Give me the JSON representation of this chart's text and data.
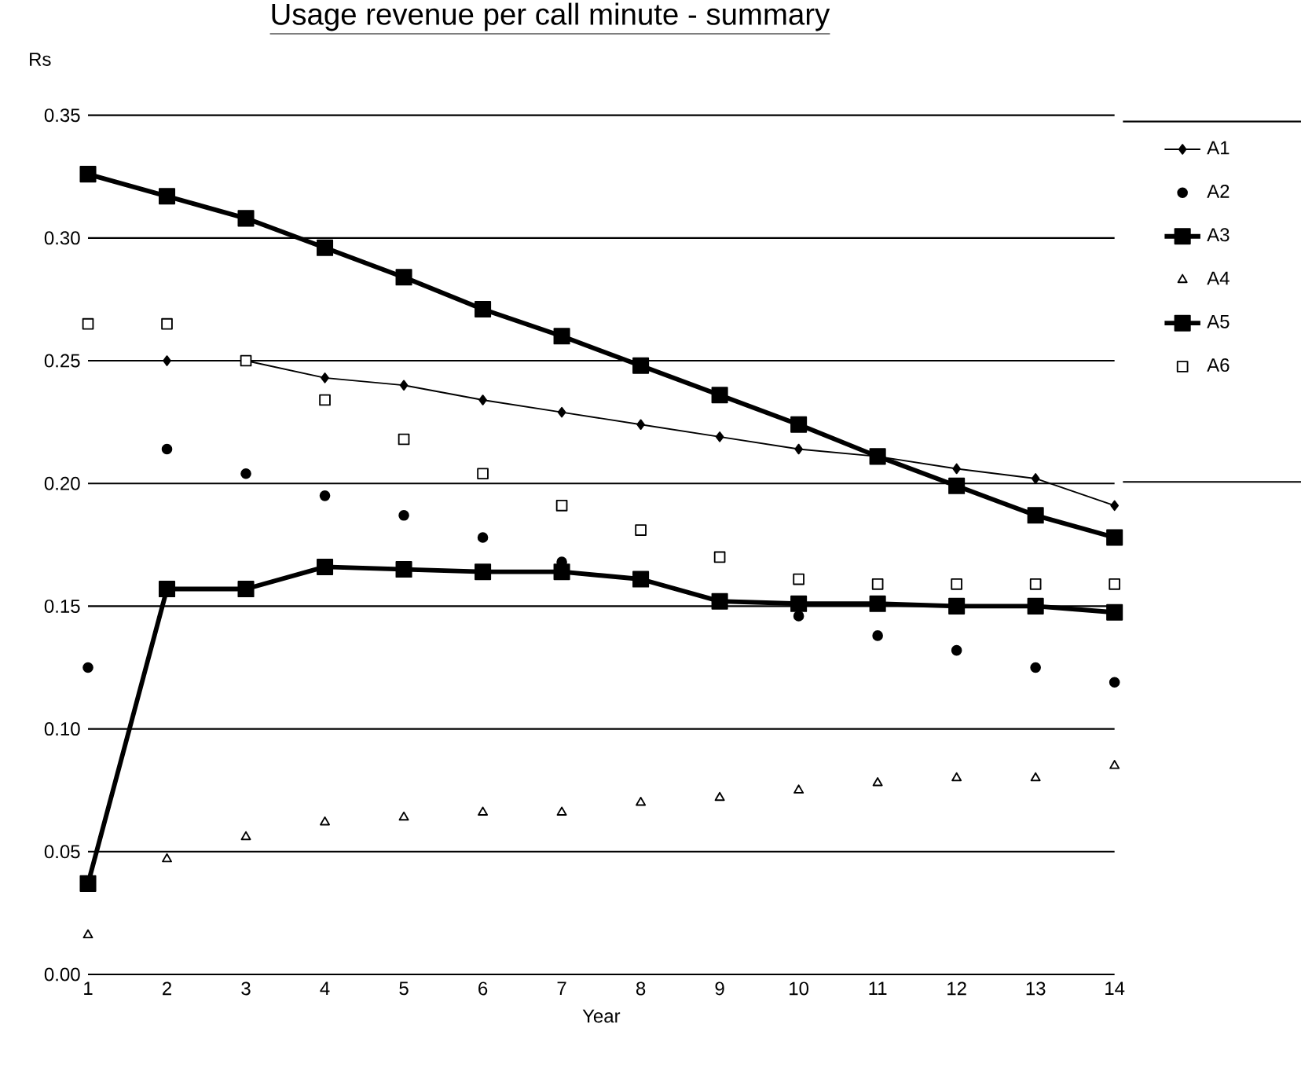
{
  "chart_data": {
    "type": "line",
    "title": "Usage revenue per call minute - summary",
    "xlabel": "Year",
    "ylabel": "Rs",
    "x": [
      1,
      2,
      3,
      4,
      5,
      6,
      7,
      8,
      9,
      10,
      11,
      12,
      13,
      14
    ],
    "xlim": [
      1,
      14
    ],
    "xticks": [
      1,
      2,
      3,
      4,
      5,
      6,
      7,
      8,
      9,
      10,
      11,
      12,
      13,
      14
    ],
    "ylim": [
      0,
      0.35
    ],
    "yticks": [
      {
        "value": 0,
        "label": "0.00"
      },
      {
        "value": 0.05,
        "label": "0.05"
      },
      {
        "value": 0.1,
        "label": "0.10"
      },
      {
        "value": 0.15,
        "label": "0.15"
      },
      {
        "value": 0.2,
        "label": "0.20"
      },
      {
        "value": 0.25,
        "label": "0.25"
      },
      {
        "value": 0.3,
        "label": "0.30"
      },
      {
        "value": 0.35,
        "label": "0.35"
      }
    ],
    "grid": "y",
    "legend": "right",
    "series": [
      {
        "name": "A1",
        "type": "line",
        "marker": "diamond",
        "color": "#000000",
        "values": [
          null,
          0.25,
          0.25,
          0.243,
          0.24,
          0.234,
          0.229,
          0.224,
          0.219,
          0.214,
          0.211,
          0.206,
          0.202,
          0.191
        ]
      },
      {
        "name": "A2",
        "type": "scatter",
        "marker": "circle",
        "color": "#000000",
        "values": [
          0.125,
          0.214,
          0.204,
          0.195,
          0.187,
          0.178,
          0.168,
          null,
          null,
          0.146,
          0.138,
          0.132,
          0.125,
          0.119
        ]
      },
      {
        "name": "A3",
        "type": "line",
        "marker": "square",
        "color": "#000000",
        "values": [
          0.326,
          0.317,
          0.308,
          0.296,
          0.284,
          0.271,
          0.26,
          0.248,
          0.236,
          0.224,
          0.211,
          0.199,
          0.187,
          0.178
        ]
      },
      {
        "name": "A4",
        "type": "scatter",
        "marker": "triangle",
        "color": "#000000",
        "values": [
          0.016,
          0.047,
          0.056,
          0.062,
          0.064,
          0.066,
          0.066,
          0.07,
          0.072,
          0.075,
          0.078,
          0.08,
          0.08,
          0.085
        ]
      },
      {
        "name": "A5",
        "type": "line",
        "marker": "square",
        "color": "#000000",
        "values": [
          0.037,
          0.157,
          0.157,
          0.166,
          0.165,
          0.164,
          0.164,
          0.161,
          0.152,
          0.151,
          0.151,
          0.15,
          0.15,
          0.1475
        ]
      },
      {
        "name": "A6",
        "type": "scatter",
        "marker": "square",
        "color": "#000000",
        "values": [
          0.265,
          0.265,
          0.25,
          0.234,
          0.218,
          0.204,
          0.191,
          0.181,
          0.17,
          0.161,
          0.159,
          0.159,
          0.159,
          0.159
        ]
      }
    ]
  }
}
